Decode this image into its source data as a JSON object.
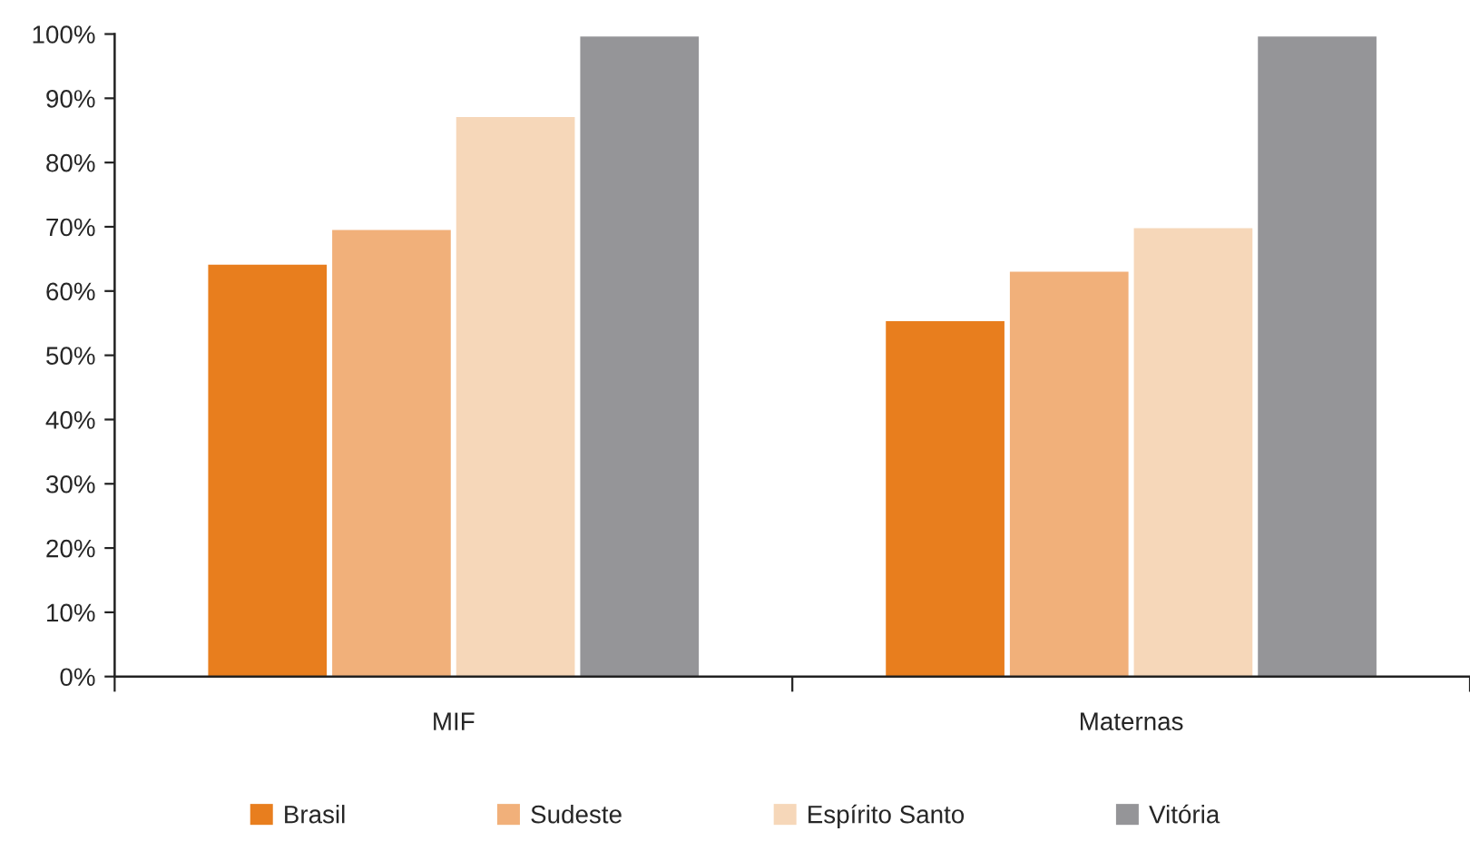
{
  "chart_data": {
    "type": "bar",
    "categories": [
      "MIF",
      "Maternas"
    ],
    "series": [
      {
        "name": "Brasil",
        "color": "#e87e1e",
        "values": [
          64.1,
          55.3
        ]
      },
      {
        "name": "Sudeste",
        "color": "#f1b07a",
        "values": [
          69.5,
          63.0
        ]
      },
      {
        "name": "Espírito Santo",
        "color": "#f6d7b9",
        "values": [
          87.1,
          69.8
        ]
      },
      {
        "name": "Vitória",
        "color": "#959598",
        "values": [
          99.6,
          99.6
        ]
      }
    ],
    "ylim": [
      0,
      100
    ],
    "yticks": [
      {
        "value": 0,
        "label": "0%"
      },
      {
        "value": 10,
        "label": "10%"
      },
      {
        "value": 20,
        "label": "20%"
      },
      {
        "value": 30,
        "label": "30%"
      },
      {
        "value": 40,
        "label": "40%"
      },
      {
        "value": 50,
        "label": "50%"
      },
      {
        "value": 60,
        "label": "60%"
      },
      {
        "value": 70,
        "label": "70%"
      },
      {
        "value": 80,
        "label": "80%"
      },
      {
        "value": 90,
        "label": "90%"
      },
      {
        "value": 100,
        "label": "100%"
      }
    ],
    "grid": false,
    "legend": "bottom"
  }
}
